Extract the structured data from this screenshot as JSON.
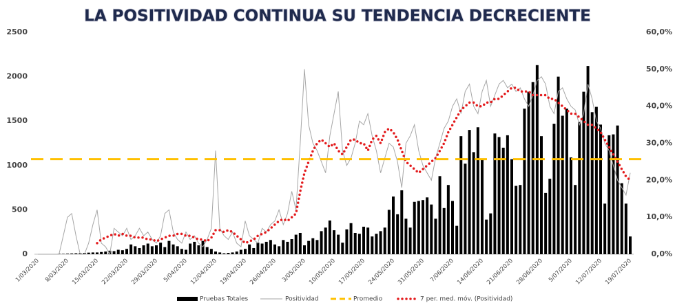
{
  "chart_data": {
    "type": "bar_line_combo",
    "title": "LA POSITIVIDAD CONTINUA SU TENDENCIA DECRECIENTE",
    "categories": [
      "1/03/2020",
      null,
      null,
      null,
      null,
      null,
      null,
      "8/03/2020",
      null,
      null,
      null,
      null,
      null,
      null,
      "15/03/2020",
      null,
      null,
      null,
      null,
      null,
      null,
      "22/03/2020",
      null,
      null,
      null,
      null,
      null,
      null,
      "29/03/2020",
      null,
      null,
      null,
      null,
      null,
      null,
      "5/04/2020",
      null,
      null,
      null,
      null,
      null,
      null,
      "12/04/2020",
      null,
      null,
      null,
      null,
      null,
      null,
      "19/04/2020",
      null,
      null,
      null,
      null,
      null,
      null,
      "26/04/2020",
      null,
      null,
      null,
      null,
      null,
      null,
      "3/05/2020",
      null,
      null,
      null,
      null,
      null,
      null,
      "10/05/2020",
      null,
      null,
      null,
      null,
      null,
      null,
      "17/05/2020",
      null,
      null,
      null,
      null,
      null,
      null,
      "24/05/2020",
      null,
      null,
      null,
      null,
      null,
      null,
      "31/05/2020",
      null,
      null,
      null,
      null,
      null,
      null,
      "7/06/2020",
      null,
      null,
      null,
      null,
      null,
      null,
      "14/06/2020",
      null,
      null,
      null,
      null,
      null,
      null,
      "21/06/2020",
      null,
      null,
      null,
      null,
      null,
      null,
      "28/06/2020",
      null,
      null,
      null,
      null,
      null,
      null,
      "5/07/2020",
      null,
      null,
      null,
      null,
      null,
      null,
      "12/07/2020",
      null,
      null,
      null,
      null,
      null,
      null,
      "19/07/2020"
    ],
    "series": [
      {
        "name": "Pruebas Totales",
        "type": "bar",
        "color": "#000000",
        "values": [
          0,
          0,
          2,
          0,
          3,
          5,
          4,
          6,
          8,
          10,
          12,
          15,
          18,
          20,
          20,
          25,
          30,
          40,
          35,
          50,
          45,
          60,
          110,
          90,
          70,
          100,
          120,
          90,
          100,
          130,
          80,
          150,
          110,
          90,
          60,
          50,
          120,
          140,
          100,
          150,
          80,
          60,
          30,
          20,
          10,
          15,
          20,
          30,
          50,
          60,
          110,
          70,
          130,
          120,
          140,
          160,
          110,
          90,
          160,
          140,
          170,
          220,
          240,
          100,
          150,
          180,
          160,
          260,
          300,
          380,
          270,
          220,
          130,
          280,
          350,
          240,
          230,
          310,
          300,
          200,
          230,
          260,
          300,
          500,
          650,
          450,
          720,
          400,
          300,
          590,
          600,
          610,
          640,
          560,
          400,
          880,
          520,
          780,
          600,
          320,
          1330,
          1020,
          1400,
          1150,
          1430,
          1070,
          390,
          460,
          1360,
          1320,
          1200,
          1340,
          1070,
          770,
          780,
          1640,
          1830,
          1940,
          2130,
          1330,
          690,
          850,
          1470,
          2000,
          1560,
          1640,
          1090,
          780,
          1490,
          1830,
          2120,
          1600,
          1660,
          1460,
          570,
          1340,
          1350,
          1450,
          800,
          570,
          200
        ]
      },
      {
        "name": "Positividad",
        "type": "line",
        "color": "#a6a6a6",
        "axis": "y2",
        "values": [
          0,
          0,
          0,
          0,
          0,
          0,
          5,
          10,
          11,
          5,
          0,
          0,
          3,
          8,
          12,
          3,
          2,
          0,
          7,
          6,
          5,
          7,
          4,
          5,
          7,
          5,
          6,
          4,
          3,
          5,
          11,
          12,
          6,
          4,
          3,
          6,
          4,
          5,
          3,
          2,
          4,
          7,
          28,
          7,
          5,
          4,
          6,
          3,
          2,
          9,
          5,
          4,
          3,
          7,
          6,
          8,
          9,
          12,
          8,
          11,
          17,
          12,
          30,
          50,
          35,
          30,
          28,
          25,
          22,
          32,
          38,
          44,
          28,
          24,
          26,
          30,
          36,
          35,
          38,
          32,
          28,
          22,
          26,
          30,
          29,
          25,
          18,
          30,
          32,
          35,
          28,
          24,
          22,
          20,
          26,
          30,
          34,
          36,
          40,
          42,
          38,
          44,
          46,
          40,
          38,
          44,
          47,
          40,
          43,
          46,
          47,
          45,
          46,
          44,
          45,
          42,
          40,
          43,
          47,
          48,
          46,
          40,
          38,
          44,
          45,
          42,
          40,
          39,
          35,
          38,
          46,
          42,
          36,
          34,
          30,
          28,
          24,
          20,
          18,
          16,
          22
        ]
      },
      {
        "name": "7 per. med. móv. (Positividad)",
        "type": "dotted",
        "color": "#e31a1c",
        "axis": "y2",
        "values": [
          null,
          null,
          null,
          null,
          null,
          null,
          null,
          null,
          null,
          null,
          null,
          null,
          null,
          null,
          3,
          4,
          4.5,
          5,
          5.5,
          5,
          5.5,
          5,
          5,
          4.5,
          4.5,
          4.5,
          4,
          4,
          3.5,
          4,
          4.5,
          5,
          5,
          5.5,
          5.5,
          5,
          5,
          4.5,
          4,
          4,
          3.5,
          4.5,
          6.5,
          6.5,
          6,
          6.5,
          6,
          5,
          4,
          3,
          3.5,
          4,
          5,
          5.5,
          6,
          7,
          8,
          9,
          9.5,
          9,
          10,
          11,
          17,
          22,
          25,
          28,
          30,
          31,
          30,
          29,
          30,
          28,
          27,
          29,
          31,
          31,
          30,
          30,
          28,
          31,
          32,
          30,
          33,
          34,
          33,
          31,
          28,
          25,
          24,
          23,
          22,
          23,
          24,
          25,
          26,
          28,
          30,
          33,
          35,
          37,
          39,
          40,
          41,
          41,
          40,
          40,
          41,
          41,
          42,
          42,
          43,
          44,
          45,
          45,
          44,
          44,
          44,
          43,
          43,
          43,
          43,
          42,
          42,
          41,
          40,
          39,
          38,
          38,
          37,
          36,
          35,
          35,
          34,
          33,
          31,
          29,
          27,
          25,
          23,
          21,
          20
        ]
      }
    ],
    "average": {
      "name": "Promedio",
      "value": 25.7,
      "color": "#ffc000",
      "axis": "y2"
    },
    "ylim": [
      0,
      2500
    ],
    "yticks": [
      0,
      500,
      1000,
      1500,
      2000,
      2500
    ],
    "y2lim": [
      0,
      60
    ],
    "y2ticks": [
      {
        "value": 0,
        "label": "0,0%"
      },
      {
        "value": 10,
        "label": "10,0%"
      },
      {
        "value": 20,
        "label": "20,0%"
      },
      {
        "value": 30,
        "label": "30,0%"
      },
      {
        "value": 40,
        "label": "40,0%"
      },
      {
        "value": 50,
        "label": "50,0%"
      },
      {
        "value": 60,
        "label": "60,0%"
      }
    ],
    "grid": false,
    "legend": "bottom"
  }
}
